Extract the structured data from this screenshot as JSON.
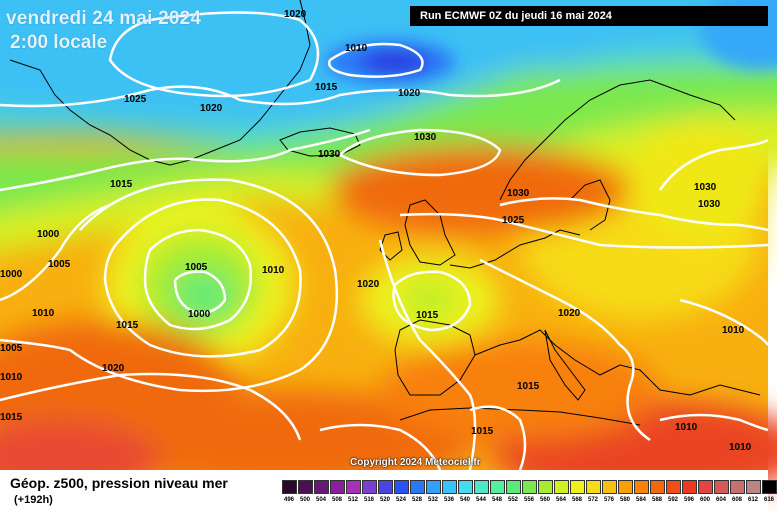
{
  "header": {
    "date_title": "vendredi 24 mai 2024",
    "time_title": "2:00 locale",
    "run_info": "Run ECMWF 0Z du jeudi 16 mai 2024"
  },
  "map": {
    "copyright": "Copyright 2024 Meteociel.fr",
    "isobar_color": "#ffffff",
    "coastline_color": "#000000",
    "isobar_labels": [
      {
        "text": "1020"
      },
      {
        "text": "1010"
      },
      {
        "text": "1015"
      },
      {
        "text": "1020"
      },
      {
        "text": "1025"
      },
      {
        "text": "1020"
      },
      {
        "text": "1030"
      },
      {
        "text": "1030"
      },
      {
        "text": "1015"
      },
      {
        "text": "1030"
      },
      {
        "text": "1025"
      },
      {
        "text": "1030"
      },
      {
        "text": "1030"
      },
      {
        "text": "1000"
      },
      {
        "text": "1005"
      },
      {
        "text": "1005"
      },
      {
        "text": "1010"
      },
      {
        "text": "1000"
      },
      {
        "text": "1010"
      },
      {
        "text": "1020"
      },
      {
        "text": "1015"
      },
      {
        "text": "1000"
      },
      {
        "text": "1015"
      },
      {
        "text": "1020"
      },
      {
        "text": "1010"
      },
      {
        "text": "1005"
      },
      {
        "text": "1010"
      },
      {
        "text": "1020"
      },
      {
        "text": "1015"
      },
      {
        "text": "1015"
      },
      {
        "text": "1015"
      },
      {
        "text": "1010"
      },
      {
        "text": "1010"
      }
    ]
  },
  "legend": {
    "title": "Géop. z500, pression niveau mer",
    "lead_time": "(+192h)",
    "scale": [
      {
        "label": "496",
        "color": "#2a0a2a"
      },
      {
        "label": "500",
        "color": "#4a1050"
      },
      {
        "label": "504",
        "color": "#6a1878"
      },
      {
        "label": "508",
        "color": "#8a1f9c"
      },
      {
        "label": "512",
        "color": "#a82fb8"
      },
      {
        "label": "516",
        "color": "#7a3fcf"
      },
      {
        "label": "520",
        "color": "#4c44e0"
      },
      {
        "label": "524",
        "color": "#2a52f0"
      },
      {
        "label": "528",
        "color": "#2a7af8"
      },
      {
        "label": "532",
        "color": "#35a0fa"
      },
      {
        "label": "536",
        "color": "#3cc2fb"
      },
      {
        "label": "540",
        "color": "#45dcf0"
      },
      {
        "label": "544",
        "color": "#4ee8c8"
      },
      {
        "label": "548",
        "color": "#55eea0"
      },
      {
        "label": "552",
        "color": "#5fea78"
      },
      {
        "label": "556",
        "color": "#7ae84e"
      },
      {
        "label": "560",
        "color": "#a6ec30"
      },
      {
        "label": "564",
        "color": "#d0f020"
      },
      {
        "label": "568",
        "color": "#eef21a"
      },
      {
        "label": "572",
        "color": "#f6dc14"
      },
      {
        "label": "576",
        "color": "#f8c010"
      },
      {
        "label": "580",
        "color": "#f8a00c"
      },
      {
        "label": "584",
        "color": "#f6840c"
      },
      {
        "label": "588",
        "color": "#f4680e"
      },
      {
        "label": "592",
        "color": "#f04e14"
      },
      {
        "label": "596",
        "color": "#ea3a22"
      },
      {
        "label": "600",
        "color": "#e04444"
      },
      {
        "label": "604",
        "color": "#d45a5a"
      },
      {
        "label": "608",
        "color": "#c87070"
      },
      {
        "label": "612",
        "color": "#bc8484"
      },
      {
        "label": "616",
        "color": "#000000"
      }
    ]
  }
}
